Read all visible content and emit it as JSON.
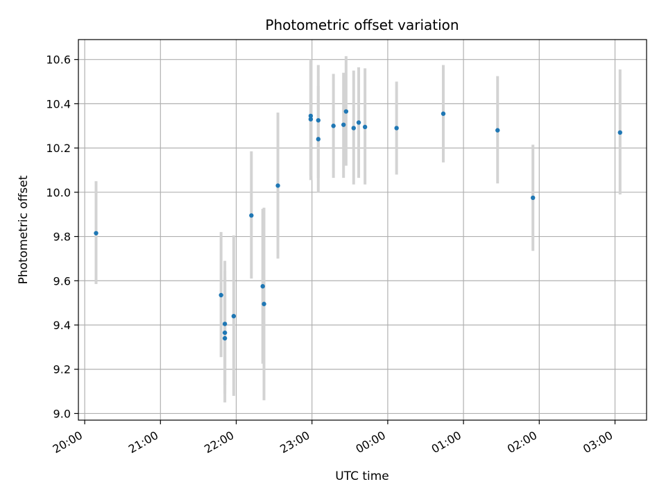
{
  "chart_data": {
    "type": "scatter",
    "title": "Photometric offset variation",
    "xlabel": "UTC time",
    "ylabel": "Photometric offset",
    "x_axis_kind": "time",
    "x_range": [
      "19:55",
      "03:25"
    ],
    "x_ticks": [
      "20:00",
      "21:00",
      "22:00",
      "23:00",
      "00:00",
      "01:00",
      "02:00",
      "03:00"
    ],
    "ylim": [
      8.97,
      10.69
    ],
    "y_ticks": [
      "9.0",
      "9.2",
      "9.4",
      "9.6",
      "9.8",
      "10.0",
      "10.2",
      "10.4",
      "10.6"
    ],
    "grid": true,
    "point_color": "#1f77b4",
    "errorbar_color": "#d3d3d3",
    "series": [
      {
        "points": [
          {
            "t": "20:09",
            "y": 9.815,
            "lo": 9.585,
            "hi": 10.05
          },
          {
            "t": "21:48",
            "y": 9.535,
            "lo": 9.255,
            "hi": 9.82
          },
          {
            "t": "21:51",
            "y": 9.405,
            "lo": 9.13,
            "hi": 9.69
          },
          {
            "t": "21:51",
            "y": 9.365,
            "lo": 9.09,
            "hi": 9.645
          },
          {
            "t": "21:51",
            "y": 9.34,
            "lo": 9.05,
            "hi": 9.615
          },
          {
            "t": "21:58",
            "y": 9.44,
            "lo": 9.08,
            "hi": 9.805
          },
          {
            "t": "22:12",
            "y": 9.895,
            "lo": 9.61,
            "hi": 10.185
          },
          {
            "t": "22:21",
            "y": 9.575,
            "lo": 9.225,
            "hi": 9.925
          },
          {
            "t": "22:22",
            "y": 9.495,
            "lo": 9.06,
            "hi": 9.93
          },
          {
            "t": "22:33",
            "y": 10.03,
            "lo": 9.7,
            "hi": 10.36
          },
          {
            "t": "22:59",
            "y": 10.345,
            "lo": 10.075,
            "hi": 10.6
          },
          {
            "t": "22:59",
            "y": 10.33,
            "lo": 10.055,
            "hi": 10.59
          },
          {
            "t": "23:05",
            "y": 10.325,
            "lo": 10.065,
            "hi": 10.575
          },
          {
            "t": "23:05",
            "y": 10.24,
            "lo": 10.0,
            "hi": 10.48
          },
          {
            "t": "23:17",
            "y": 10.3,
            "lo": 10.065,
            "hi": 10.535
          },
          {
            "t": "23:25",
            "y": 10.305,
            "lo": 10.065,
            "hi": 10.54
          },
          {
            "t": "23:27",
            "y": 10.365,
            "lo": 10.12,
            "hi": 10.615
          },
          {
            "t": "23:33",
            "y": 10.29,
            "lo": 10.035,
            "hi": 10.55
          },
          {
            "t": "23:37",
            "y": 10.315,
            "lo": 10.065,
            "hi": 10.565
          },
          {
            "t": "23:42",
            "y": 10.295,
            "lo": 10.035,
            "hi": 10.56
          },
          {
            "t": "00:07",
            "y": 10.29,
            "lo": 10.08,
            "hi": 10.5
          },
          {
            "t": "00:44",
            "y": 10.355,
            "lo": 10.135,
            "hi": 10.575
          },
          {
            "t": "01:27",
            "y": 10.28,
            "lo": 10.04,
            "hi": 10.525
          },
          {
            "t": "01:55",
            "y": 9.975,
            "lo": 9.735,
            "hi": 10.215
          },
          {
            "t": "03:04",
            "y": 10.27,
            "lo": 9.99,
            "hi": 10.555
          }
        ]
      }
    ]
  }
}
